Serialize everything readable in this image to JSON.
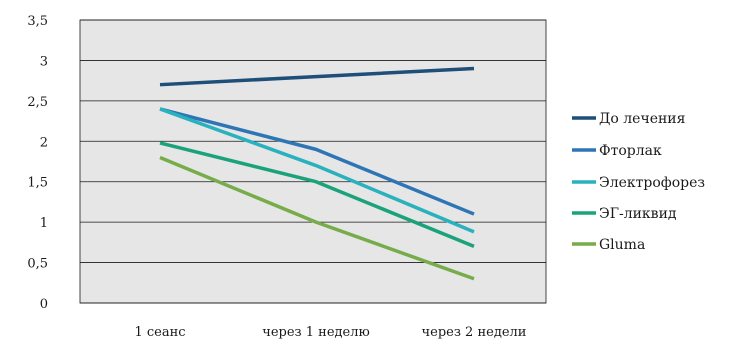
{
  "chart_data": {
    "type": "line",
    "title": "",
    "xlabel": "",
    "ylabel": "",
    "categories": [
      "1 сеанс",
      "через 1 неделю",
      "через 2 недели"
    ],
    "y_ticks": [
      "0",
      "0,5",
      "1",
      "1,5",
      "2",
      "2,5",
      "3",
      "3,5"
    ],
    "ylim": [
      0,
      3.5
    ],
    "grid": true,
    "plot_background": "#e6e6e6",
    "legend_position": "right",
    "series": [
      {
        "name": "До лечения",
        "color": "#1f4e79",
        "values": [
          2.7,
          2.8,
          2.9
        ]
      },
      {
        "name": "Фторлак",
        "color": "#2e75b6",
        "values": [
          2.4,
          1.9,
          1.1
        ]
      },
      {
        "name": "Электрофорез",
        "color": "#29b2bd",
        "values": [
          2.4,
          1.7,
          0.88
        ]
      },
      {
        "name": "ЭГ-ликвид",
        "color": "#1aa37a",
        "values": [
          1.98,
          1.5,
          0.7
        ]
      },
      {
        "name": "Gluma",
        "color": "#77ac4b",
        "values": [
          1.8,
          1.0,
          0.3
        ]
      }
    ]
  }
}
